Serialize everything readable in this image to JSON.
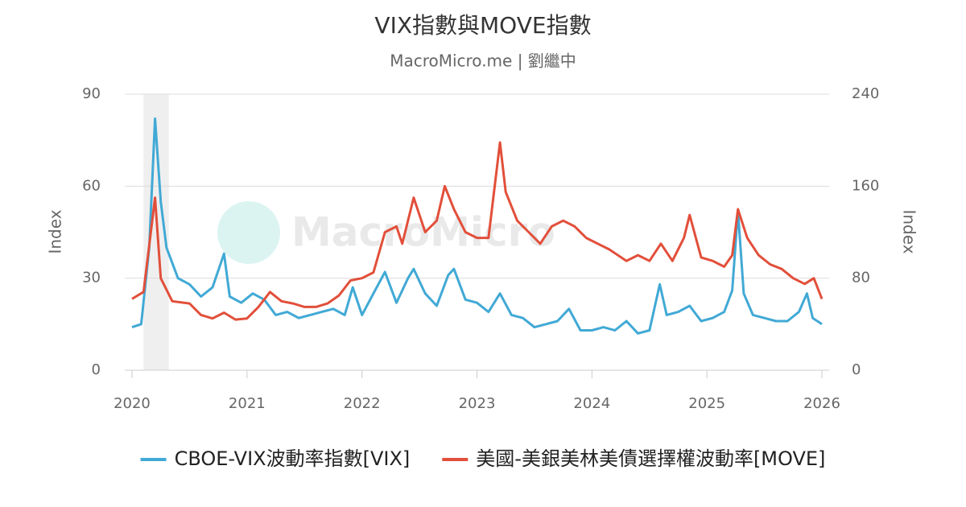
{
  "chart_data": {
    "type": "line",
    "title": "VIX指數與MOVE指數",
    "subtitle": "MacroMicro.me | 劉繼中",
    "watermark": "MacroMicro",
    "y_label": "Index",
    "y2_label": "Index",
    "xlim": [
      2019.937,
      2026.063
    ],
    "xticks": [
      2020,
      2021,
      2022,
      2023,
      2024,
      2025,
      2026
    ],
    "ylim": [
      0,
      90
    ],
    "yticks": [
      0,
      30,
      60,
      90
    ],
    "y2lim": [
      0,
      240
    ],
    "y2ticks": [
      0,
      80,
      160,
      240
    ],
    "grid": true,
    "shaded_xrange": [
      2020.1,
      2020.32
    ],
    "legend": "bottom",
    "series": [
      {
        "name": "CBOE-VIX波動率指數[VIX]",
        "color": "#41a9d5",
        "axis": "y",
        "x": [
          2020.0,
          2020.08,
          2020.15,
          2020.2,
          2020.25,
          2020.3,
          2020.4,
          2020.5,
          2020.6,
          2020.7,
          2020.8,
          2020.85,
          2020.95,
          2021.05,
          2021.15,
          2021.25,
          2021.35,
          2021.45,
          2021.55,
          2021.65,
          2021.75,
          2021.85,
          2021.92,
          2022.0,
          2022.1,
          2022.2,
          2022.3,
          2022.4,
          2022.45,
          2022.55,
          2022.65,
          2022.75,
          2022.8,
          2022.9,
          2023.0,
          2023.1,
          2023.2,
          2023.3,
          2023.4,
          2023.5,
          2023.6,
          2023.7,
          2023.8,
          2023.9,
          2024.0,
          2024.1,
          2024.2,
          2024.3,
          2024.4,
          2024.5,
          2024.59,
          2024.65,
          2024.75,
          2024.85,
          2024.95,
          2025.05,
          2025.15,
          2025.22,
          2025.27,
          2025.32,
          2025.4,
          2025.5,
          2025.6,
          2025.7,
          2025.8,
          2025.87,
          2025.92,
          2026.0
        ],
        "values": [
          14,
          15,
          40,
          82,
          55,
          40,
          30,
          28,
          24,
          27,
          38,
          24,
          22,
          25,
          23,
          18,
          19,
          17,
          18,
          19,
          20,
          18,
          27,
          18,
          25,
          32,
          22,
          30,
          33,
          25,
          21,
          31,
          33,
          23,
          22,
          19,
          25,
          18,
          17,
          14,
          15,
          16,
          20,
          13,
          13,
          14,
          13,
          16,
          12,
          13,
          28,
          18,
          19,
          21,
          16,
          17,
          19,
          26,
          52,
          25,
          18,
          17,
          16,
          16,
          19,
          25,
          17,
          15
        ]
      },
      {
        "name": "美國-美銀美林美債選擇權波動率[MOVE]",
        "color": "#e24f3a",
        "axis": "y2",
        "x": [
          2020.0,
          2020.1,
          2020.2,
          2020.25,
          2020.35,
          2020.5,
          2020.6,
          2020.7,
          2020.8,
          2020.9,
          2021.0,
          2021.1,
          2021.2,
          2021.3,
          2021.4,
          2021.5,
          2021.6,
          2021.7,
          2021.8,
          2021.9,
          2022.0,
          2022.1,
          2022.2,
          2022.3,
          2022.35,
          2022.45,
          2022.55,
          2022.65,
          2022.72,
          2022.8,
          2022.9,
          2023.0,
          2023.1,
          2023.2,
          2023.25,
          2023.35,
          2023.45,
          2023.55,
          2023.65,
          2023.75,
          2023.85,
          2023.95,
          2024.05,
          2024.15,
          2024.3,
          2024.4,
          2024.5,
          2024.6,
          2024.7,
          2024.8,
          2024.85,
          2024.95,
          2025.05,
          2025.15,
          2025.22,
          2025.27,
          2025.35,
          2025.45,
          2025.55,
          2025.65,
          2025.75,
          2025.85,
          2025.93,
          2026.0
        ],
        "values": [
          62,
          68,
          150,
          80,
          60,
          58,
          48,
          45,
          50,
          44,
          45,
          55,
          68,
          60,
          58,
          55,
          55,
          58,
          65,
          78,
          80,
          85,
          120,
          125,
          110,
          150,
          120,
          130,
          160,
          140,
          120,
          115,
          115,
          198,
          155,
          130,
          120,
          110,
          125,
          130,
          125,
          115,
          110,
          105,
          95,
          100,
          95,
          110,
          95,
          115,
          135,
          98,
          95,
          90,
          100,
          140,
          115,
          100,
          92,
          88,
          80,
          75,
          80,
          62
        ]
      }
    ]
  }
}
